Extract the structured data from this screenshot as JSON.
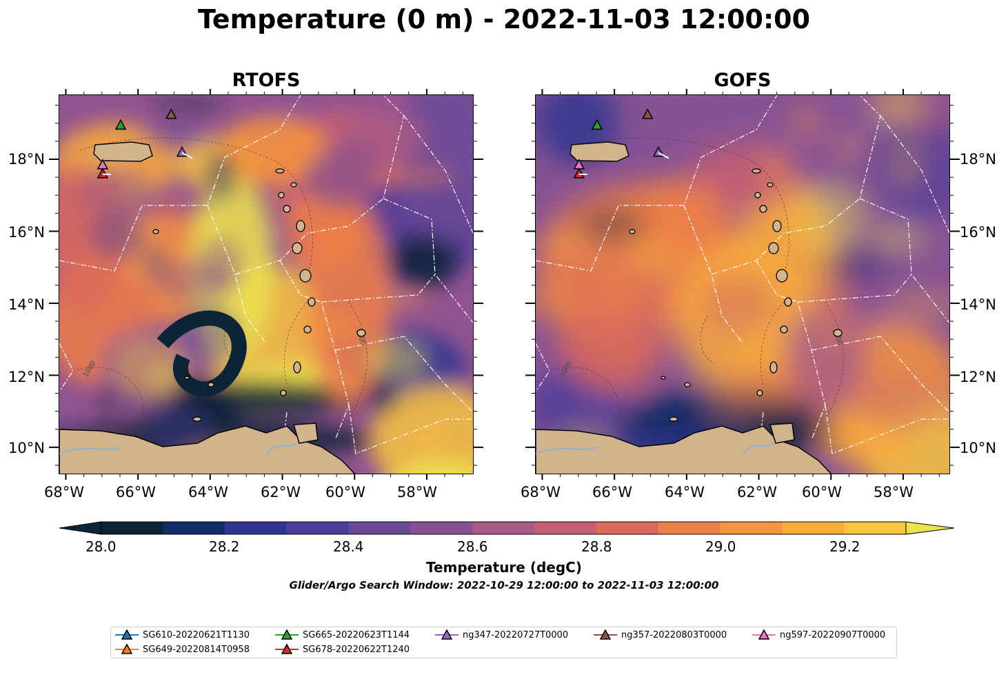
{
  "title": "Temperature (0 m) - 2022-11-03 12:00:00",
  "panels": [
    {
      "name": "RTOFS"
    },
    {
      "name": "GOFS"
    }
  ],
  "lon_labels": [
    "68°W",
    "66°W",
    "64°W",
    "62°W",
    "60°W",
    "58°W"
  ],
  "lat_labels": [
    "18°N",
    "16°N",
    "14°N",
    "12°N",
    "10°N"
  ],
  "contour_labels": [
    "1000",
    "1000"
  ],
  "colorbar": {
    "ticks": [
      "28.0",
      "28.2",
      "28.4",
      "28.6",
      "28.8",
      "29.0",
      "29.2"
    ],
    "colors": [
      "#0b2438",
      "#122c6a",
      "#2f3590",
      "#4d3d9a",
      "#6a4a97",
      "#875293",
      "#a85a86",
      "#c65f72",
      "#dc6a5b",
      "#ee7f49",
      "#f7953c",
      "#faac3a",
      "#f8c43f",
      "#ece44d"
    ],
    "label": "Temperature (degC)",
    "range": [
      28.0,
      29.3
    ]
  },
  "search_window": "Glider/Argo Search Window: 2022-10-29 12:00:00 to 2022-11-03 12:00:00",
  "gliders": [
    {
      "name": "SG610-20220621T1130",
      "color": "#1f77b4"
    },
    {
      "name": "SG649-20220814T0958",
      "color": "#ff7f0e"
    },
    {
      "name": "SG665-20220623T1144",
      "color": "#2ca02c"
    },
    {
      "name": "SG678-20220622T1240",
      "color": "#d62728"
    },
    {
      "name": "ng347-20220727T0000",
      "color": "#9467bd"
    },
    {
      "name": "ng357-20220803T0000",
      "color": "#8c564b"
    },
    {
      "name": "ng597-20220907T0000",
      "color": "#e377c2"
    }
  ],
  "markers": [
    {
      "glider": "SG665-20220623T1144",
      "lon": -66.5,
      "lat": 18.95
    },
    {
      "glider": "ng357-20220803T0000",
      "lon": -65.1,
      "lat": 19.25
    },
    {
      "glider": "ng347-20220727T0000",
      "lon": -64.8,
      "lat": 18.2
    },
    {
      "glider": "ng597-20220907T0000",
      "lon": -67.0,
      "lat": 17.85
    },
    {
      "glider": "SG678-20220622T1240",
      "lon": -67.0,
      "lat": 17.6
    }
  ]
}
